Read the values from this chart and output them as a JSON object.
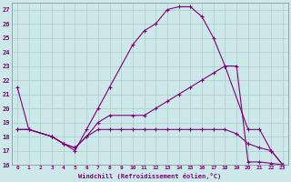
{
  "xlabel": "Windchill (Refroidissement éolien,°C)",
  "background_color": "#cce8e8",
  "grid_color": "#aacccc",
  "line_color": "#800080",
  "ylim": [
    16,
    27.5
  ],
  "xlim": [
    -0.5,
    23.5
  ],
  "yticks": [
    16,
    17,
    18,
    19,
    20,
    21,
    22,
    23,
    24,
    25,
    26,
    27
  ],
  "xticks": [
    0,
    1,
    2,
    3,
    4,
    5,
    6,
    7,
    8,
    9,
    10,
    11,
    12,
    13,
    14,
    15,
    16,
    17,
    18,
    19,
    20,
    21,
    22,
    23
  ],
  "series1_x": [
    0,
    1,
    3,
    4,
    5,
    6,
    7,
    8,
    10,
    11,
    12,
    13,
    14,
    15,
    16,
    17,
    18,
    20,
    21,
    22,
    23
  ],
  "series1_y": [
    21.5,
    18.5,
    18.0,
    17.5,
    17.0,
    18.5,
    20.0,
    21.5,
    24.5,
    25.5,
    26.0,
    27.0,
    27.2,
    27.2,
    26.5,
    25.0,
    23.0,
    18.5,
    18.5,
    17.0,
    16.0
  ],
  "series2_x": [
    0,
    1,
    3,
    4,
    5,
    6,
    7,
    8,
    10,
    11,
    12,
    13,
    14,
    15,
    16,
    17,
    18,
    19,
    20,
    21,
    22,
    23
  ],
  "series2_y": [
    18.5,
    18.5,
    18.0,
    17.5,
    17.2,
    18.0,
    19.0,
    19.5,
    19.5,
    19.5,
    20.0,
    20.5,
    21.0,
    21.5,
    22.0,
    22.5,
    23.0,
    23.0,
    16.2,
    16.2,
    16.1,
    16.0
  ],
  "series3_x": [
    0,
    1,
    3,
    4,
    5,
    6,
    7,
    8,
    9,
    10,
    11,
    12,
    13,
    14,
    15,
    16,
    17,
    18,
    19,
    20,
    21,
    22,
    23
  ],
  "series3_y": [
    18.5,
    18.5,
    18.0,
    17.5,
    17.2,
    18.0,
    18.5,
    18.5,
    18.5,
    18.5,
    18.5,
    18.5,
    18.5,
    18.5,
    18.5,
    18.5,
    18.5,
    18.5,
    18.2,
    17.5,
    17.2,
    17.0,
    16.0
  ],
  "marker": "+",
  "markersize": 3,
  "linewidth": 0.8
}
